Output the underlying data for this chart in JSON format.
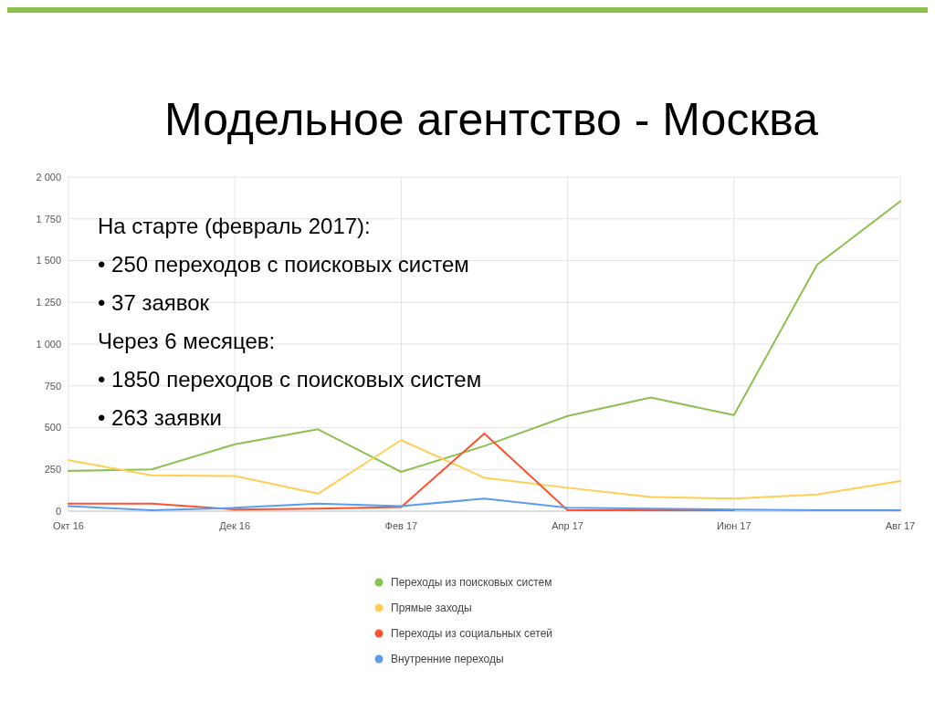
{
  "chart_data": {
    "type": "line",
    "title": "Модельное агентство - Москва",
    "categories": [
      "Окт 16",
      null,
      "Дек 16",
      null,
      "Фев 17",
      null,
      "Апр 17",
      null,
      "Июн 17",
      null,
      "Авг 17"
    ],
    "series": [
      {
        "name": "Переходы из поисковых систем",
        "color": "#8cc152",
        "values": [
          240,
          250,
          400,
          490,
          235,
          390,
          570,
          680,
          575,
          1475,
          1855
        ]
      },
      {
        "name": "Прямые заходы",
        "color": "#ffce54",
        "values": [
          305,
          215,
          210,
          105,
          425,
          200,
          140,
          85,
          75,
          100,
          180
        ]
      },
      {
        "name": "Переходы из социальных сетей",
        "color": "#fc5230",
        "values": [
          45,
          45,
          10,
          15,
          25,
          465,
          5,
          5,
          5,
          null,
          null
        ]
      },
      {
        "name": "Внутренние переходы",
        "color": "#5d9cec",
        "values": [
          30,
          5,
          20,
          45,
          30,
          75,
          20,
          15,
          10,
          5,
          5
        ]
      }
    ],
    "ylim": [
      0,
      2000
    ],
    "yticks": [
      0,
      250,
      500,
      750,
      {
        "value": 1000,
        "label": "1 000"
      },
      {
        "value": 1250,
        "label": "1 250"
      },
      {
        "value": 1500,
        "label": "1 500"
      },
      {
        "value": 1750,
        "label": "1 750"
      },
      {
        "value": 2000,
        "label": "2 000"
      }
    ],
    "grid": true,
    "legend": "bottom",
    "annotations": [
      "На старте (февраль 2017):",
      "• 250 переходов с поисковых систем",
      "• 37 заявок",
      "Через 6 месяцев:",
      "• 1850 переходов с поисковых систем",
      "• 263 заявки"
    ]
  }
}
